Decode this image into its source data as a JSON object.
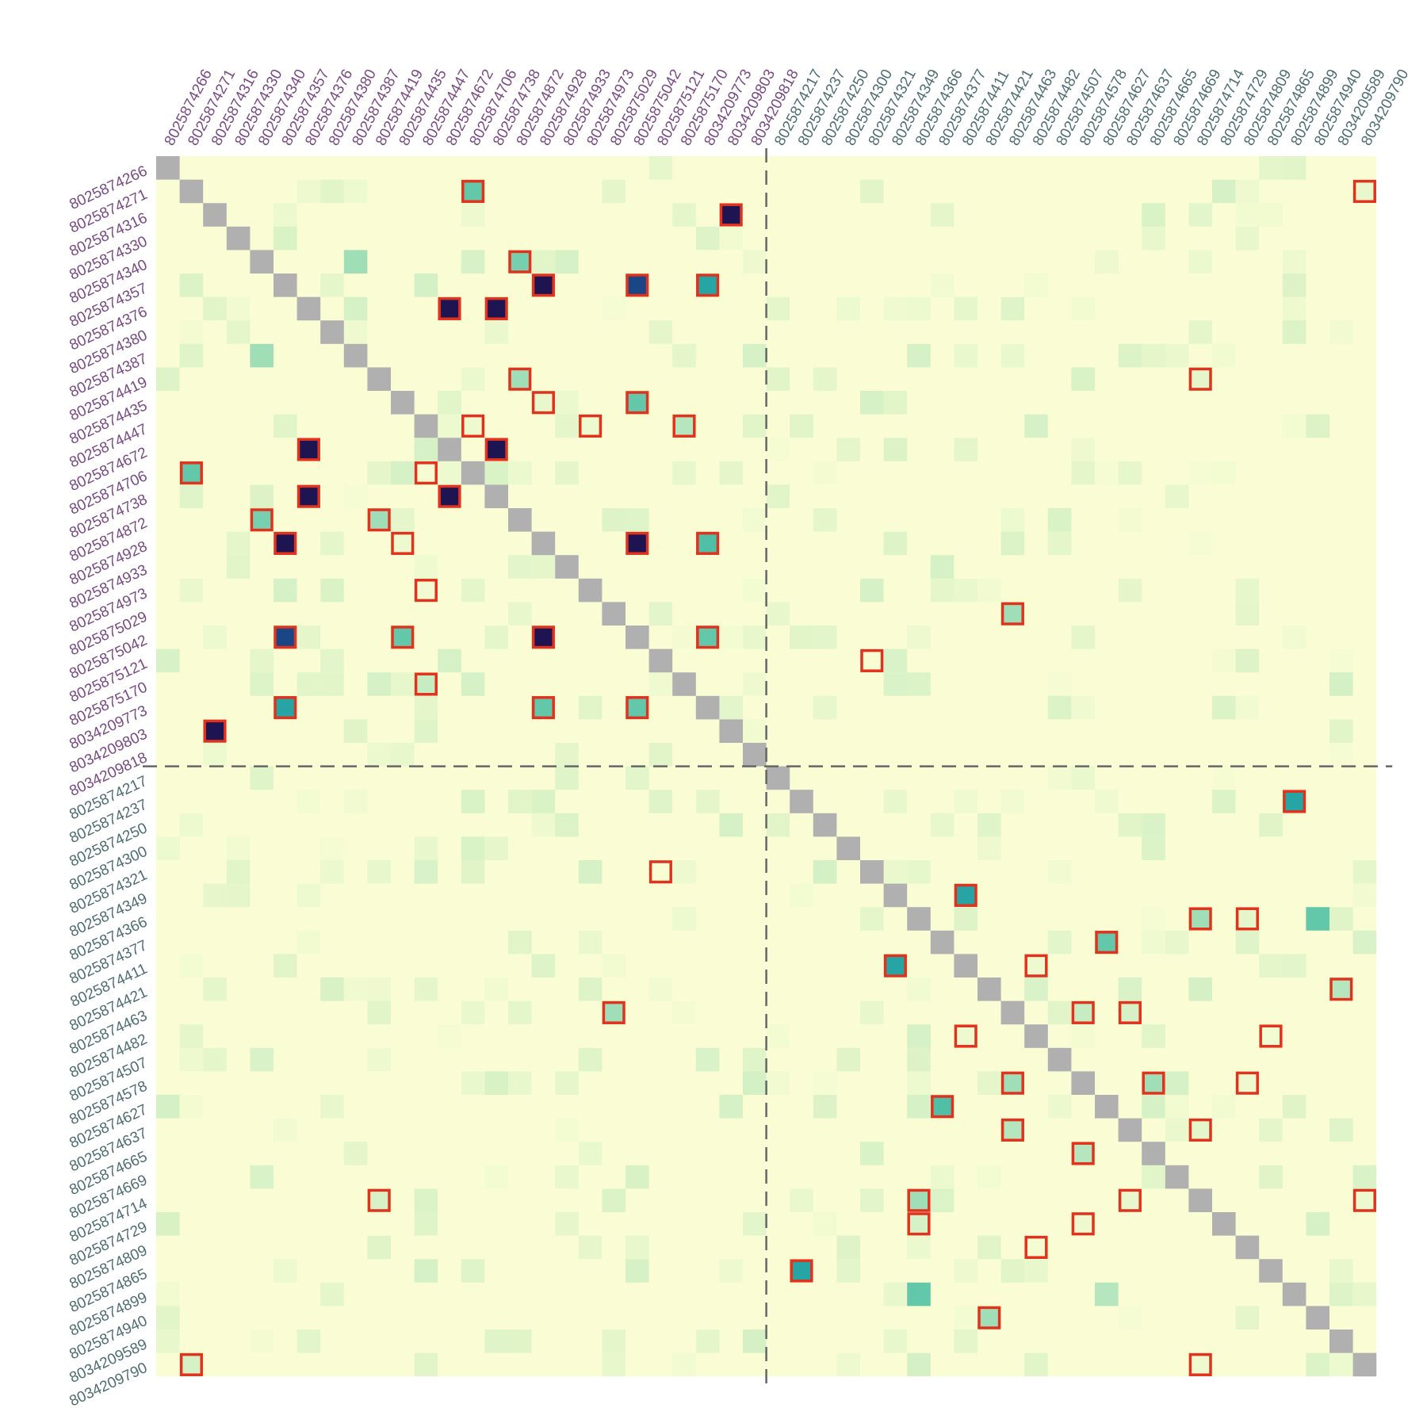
{
  "chart_data": {
    "type": "heatmap",
    "title": "",
    "xlabel": "",
    "ylabel": "",
    "labels": [
      "8025874266",
      "8025874271",
      "8025874316",
      "8025874330",
      "8025874340",
      "8025874357",
      "8025874376",
      "8025874380",
      "8025874387",
      "8025874419",
      "8025874435",
      "8025874447",
      "8025874672",
      "8025874706",
      "8025874738",
      "8025874872",
      "8025874928",
      "8025874933",
      "8025874973",
      "8025875029",
      "8025875042",
      "8025875121",
      "8025875170",
      "8034209773",
      "8034209803",
      "8034209818",
      "8025874217",
      "8025874237",
      "8025874250",
      "8025874300",
      "8025874321",
      "8025874349",
      "8025874366",
      "8025874377",
      "8025874411",
      "8025874421",
      "8025874463",
      "8025874482",
      "8025874507",
      "8025874578",
      "8025874627",
      "8025874637",
      "8025874665",
      "8025874669",
      "8025874714",
      "8025874729",
      "8025874809",
      "8025874865",
      "8025874899",
      "8025874940",
      "8034209589",
      "8034209790"
    ],
    "group_split_index": 26,
    "group_colors": [
      "#7a4a86",
      "#4e6e70"
    ],
    "diagonal_color": "#b0b0b0",
    "background_color": "#fafdd4",
    "highlight_border_color": "#e0321c",
    "divider_color": "#666666",
    "colorscale": [
      "#fafdd4",
      "#dff4c8",
      "#b6e6bd",
      "#80d3b0",
      "#4fbfa6",
      "#1c9fa3",
      "#1f6a9c",
      "#1a3d80",
      "#1f1452"
    ],
    "value_range": [
      0,
      1
    ],
    "strong_cells": [
      [
        1,
        13,
        0.45,
        true
      ],
      [
        1,
        51,
        0.08,
        true
      ],
      [
        2,
        24,
        1.0,
        true
      ],
      [
        4,
        8,
        0.3,
        false
      ],
      [
        4,
        15,
        0.4,
        true
      ],
      [
        4,
        17,
        0.15,
        false
      ],
      [
        5,
        16,
        1.0,
        true
      ],
      [
        5,
        20,
        0.85,
        true
      ],
      [
        5,
        23,
        0.6,
        true
      ],
      [
        6,
        12,
        1.0,
        true
      ],
      [
        6,
        14,
        1.0,
        true
      ],
      [
        8,
        4,
        0.3,
        false
      ],
      [
        9,
        15,
        0.3,
        true
      ],
      [
        9,
        44,
        0.1,
        true
      ],
      [
        10,
        16,
        0.08,
        true
      ],
      [
        10,
        20,
        0.45,
        true
      ],
      [
        11,
        13,
        0.06,
        true
      ],
      [
        11,
        18,
        0.06,
        true
      ],
      [
        11,
        22,
        0.25,
        true
      ],
      [
        12,
        6,
        1.0,
        true
      ],
      [
        12,
        14,
        1.0,
        true
      ],
      [
        13,
        1,
        0.45,
        true
      ],
      [
        13,
        11,
        0.02,
        true
      ],
      [
        14,
        6,
        1.0,
        true
      ],
      [
        14,
        12,
        1.0,
        true
      ],
      [
        15,
        4,
        0.4,
        true
      ],
      [
        15,
        9,
        0.3,
        true
      ],
      [
        16,
        5,
        1.0,
        true
      ],
      [
        16,
        10,
        0.06,
        true
      ],
      [
        16,
        20,
        1.0,
        true
      ],
      [
        16,
        23,
        0.5,
        true
      ],
      [
        18,
        11,
        0.04,
        true
      ],
      [
        19,
        36,
        0.3,
        true
      ],
      [
        20,
        5,
        0.85,
        true
      ],
      [
        20,
        10,
        0.45,
        true
      ],
      [
        20,
        16,
        1.0,
        true
      ],
      [
        20,
        23,
        0.45,
        true
      ],
      [
        21,
        30,
        0.0,
        true
      ],
      [
        22,
        11,
        0.2,
        true
      ],
      [
        23,
        5,
        0.6,
        true
      ],
      [
        23,
        16,
        0.45,
        true
      ],
      [
        23,
        20,
        0.45,
        true
      ],
      [
        24,
        2,
        1.0,
        true
      ],
      [
        27,
        48,
        0.6,
        true
      ],
      [
        30,
        21,
        0.0,
        true
      ],
      [
        31,
        34,
        0.6,
        true
      ],
      [
        32,
        44,
        0.3,
        true
      ],
      [
        32,
        46,
        0.1,
        true
      ],
      [
        32,
        49,
        0.45,
        false
      ],
      [
        33,
        40,
        0.45,
        true
      ],
      [
        34,
        31,
        0.6,
        true
      ],
      [
        34,
        37,
        0.05,
        true
      ],
      [
        35,
        50,
        0.25,
        true
      ],
      [
        36,
        19,
        0.3,
        true
      ],
      [
        36,
        39,
        0.2,
        true
      ],
      [
        36,
        41,
        0.15,
        true
      ],
      [
        37,
        34,
        0.05,
        true
      ],
      [
        37,
        47,
        0.04,
        true
      ],
      [
        39,
        36,
        0.3,
        true
      ],
      [
        39,
        42,
        0.3,
        true
      ],
      [
        39,
        46,
        0.05,
        true
      ],
      [
        40,
        33,
        0.5,
        true
      ],
      [
        41,
        36,
        0.25,
        true
      ],
      [
        41,
        44,
        0.1,
        true
      ],
      [
        42,
        39,
        0.25,
        true
      ],
      [
        44,
        9,
        0.15,
        true
      ],
      [
        44,
        32,
        0.3,
        true
      ],
      [
        44,
        41,
        0.08,
        true
      ],
      [
        44,
        51,
        0.06,
        true
      ],
      [
        45,
        32,
        0.15,
        true
      ],
      [
        45,
        39,
        0.05,
        true
      ],
      [
        46,
        37,
        0.02,
        true
      ],
      [
        47,
        27,
        0.6,
        true
      ],
      [
        48,
        32,
        0.45,
        false
      ],
      [
        48,
        40,
        0.25,
        false
      ],
      [
        49,
        35,
        0.3,
        true
      ],
      [
        51,
        1,
        0.15,
        true
      ],
      [
        51,
        44,
        0.05,
        true
      ]
    ]
  }
}
